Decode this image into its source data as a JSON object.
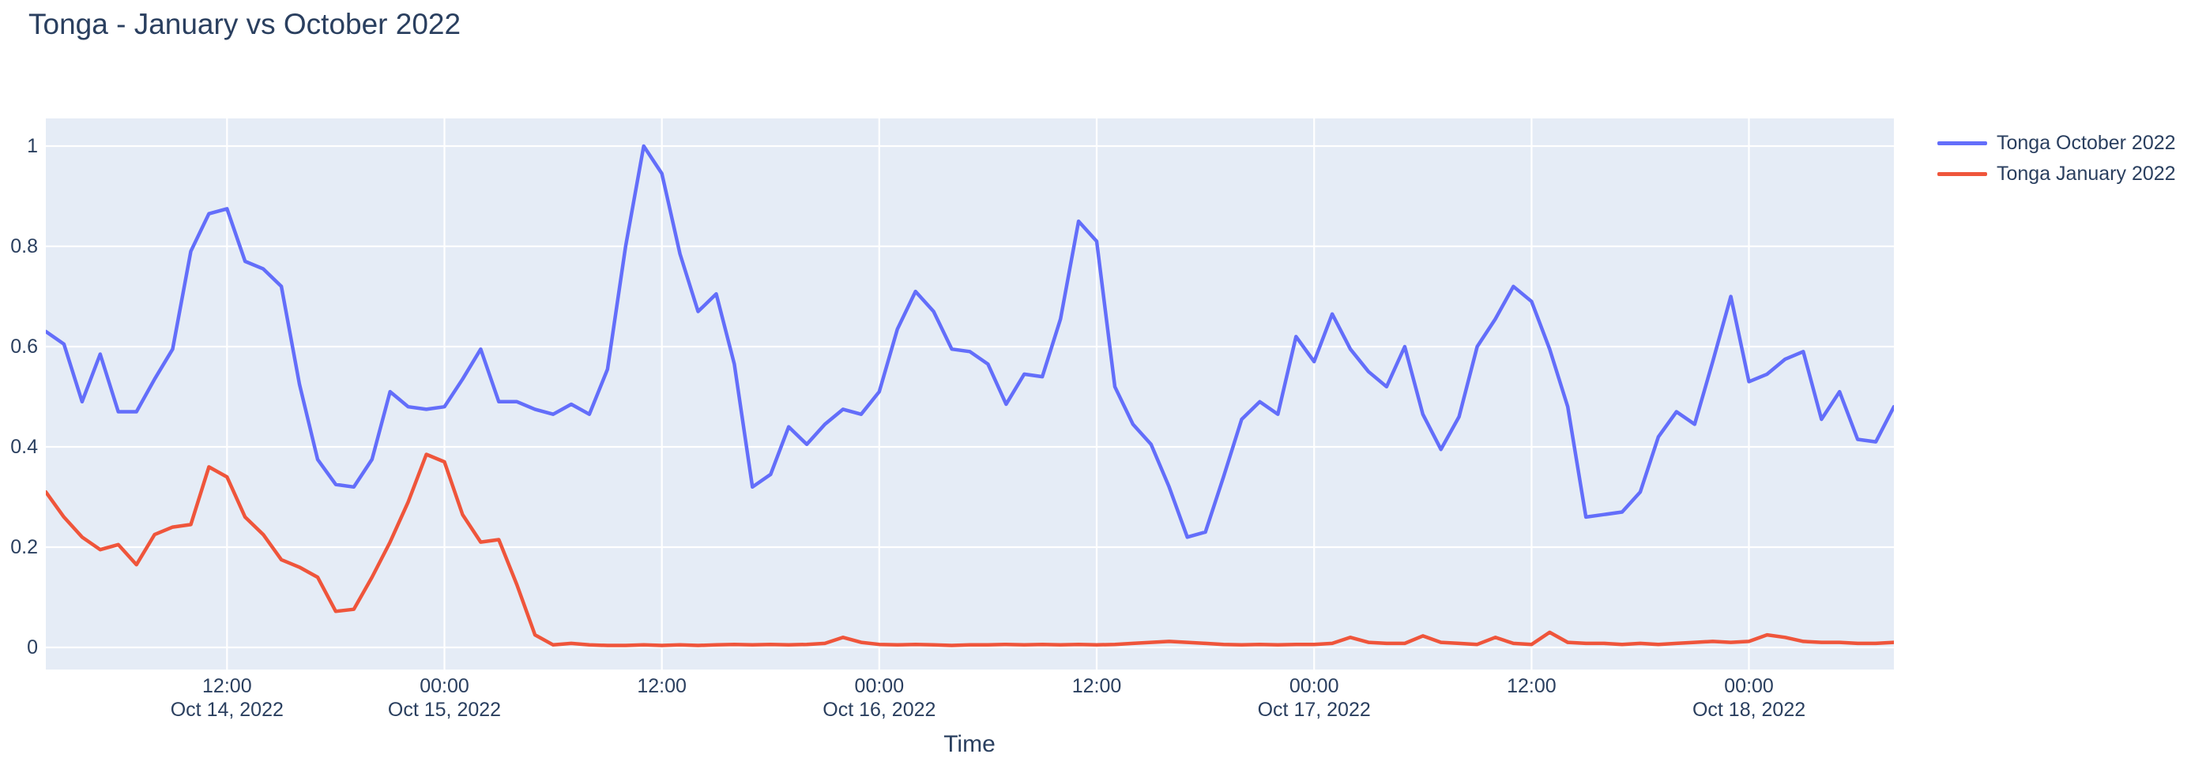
{
  "chart_data": {
    "type": "line",
    "title": "Tonga - January vs October 2022",
    "xlabel": "Time",
    "ylabel": "",
    "plot_bg": "#e5ecf6",
    "grid_color": "#ffffff",
    "text_color": "#2a3f5f",
    "grid": true,
    "legend_position": "right",
    "ylim": [
      -0.0441,
      1.0551
    ],
    "yticks": [
      {
        "value": 0,
        "label": "0"
      },
      {
        "value": 0.2,
        "label": "0.2"
      },
      {
        "value": 0.4,
        "label": "0.4"
      },
      {
        "value": 0.6,
        "label": "0.6"
      },
      {
        "value": 0.8,
        "label": "0.8"
      },
      {
        "value": 1,
        "label": "1"
      }
    ],
    "xticks": [
      {
        "hour_offset": 10,
        "time": "12:00",
        "date": "Oct 14, 2022"
      },
      {
        "hour_offset": 22,
        "time": "00:00",
        "date": "Oct 15, 2022"
      },
      {
        "hour_offset": 34,
        "time": "12:00",
        "date": ""
      },
      {
        "hour_offset": 46,
        "time": "00:00",
        "date": "Oct 16, 2022"
      },
      {
        "hour_offset": 58,
        "time": "12:00",
        "date": ""
      },
      {
        "hour_offset": 70,
        "time": "00:00",
        "date": "Oct 17, 2022"
      },
      {
        "hour_offset": 82,
        "time": "12:00",
        "date": ""
      },
      {
        "hour_offset": 94,
        "time": "00:00",
        "date": "Oct 18, 2022"
      }
    ],
    "x": [
      "2022-10-14 02:00",
      "2022-10-14 03:00",
      "2022-10-14 04:00",
      "2022-10-14 05:00",
      "2022-10-14 06:00",
      "2022-10-14 07:00",
      "2022-10-14 08:00",
      "2022-10-14 09:00",
      "2022-10-14 10:00",
      "2022-10-14 11:00",
      "2022-10-14 12:00",
      "2022-10-14 13:00",
      "2022-10-14 14:00",
      "2022-10-14 15:00",
      "2022-10-14 16:00",
      "2022-10-14 17:00",
      "2022-10-14 18:00",
      "2022-10-14 19:00",
      "2022-10-14 20:00",
      "2022-10-14 21:00",
      "2022-10-14 22:00",
      "2022-10-14 23:00",
      "2022-10-15 00:00",
      "2022-10-15 01:00",
      "2022-10-15 02:00",
      "2022-10-15 03:00",
      "2022-10-15 04:00",
      "2022-10-15 05:00",
      "2022-10-15 06:00",
      "2022-10-15 07:00",
      "2022-10-15 08:00",
      "2022-10-15 09:00",
      "2022-10-15 10:00",
      "2022-10-15 11:00",
      "2022-10-15 12:00",
      "2022-10-15 13:00",
      "2022-10-15 14:00",
      "2022-10-15 15:00",
      "2022-10-15 16:00",
      "2022-10-15 17:00",
      "2022-10-15 18:00",
      "2022-10-15 19:00",
      "2022-10-15 20:00",
      "2022-10-15 21:00",
      "2022-10-15 22:00",
      "2022-10-15 23:00",
      "2022-10-16 00:00",
      "2022-10-16 01:00",
      "2022-10-16 02:00",
      "2022-10-16 03:00",
      "2022-10-16 04:00",
      "2022-10-16 05:00",
      "2022-10-16 06:00",
      "2022-10-16 07:00",
      "2022-10-16 08:00",
      "2022-10-16 09:00",
      "2022-10-16 10:00",
      "2022-10-16 11:00",
      "2022-10-16 12:00",
      "2022-10-16 13:00",
      "2022-10-16 14:00",
      "2022-10-16 15:00",
      "2022-10-16 16:00",
      "2022-10-16 17:00",
      "2022-10-16 18:00",
      "2022-10-16 19:00",
      "2022-10-16 20:00",
      "2022-10-16 21:00",
      "2022-10-16 22:00",
      "2022-10-16 23:00",
      "2022-10-17 00:00",
      "2022-10-17 01:00",
      "2022-10-17 02:00",
      "2022-10-17 03:00",
      "2022-10-17 04:00",
      "2022-10-17 05:00",
      "2022-10-17 06:00",
      "2022-10-17 07:00",
      "2022-10-17 08:00",
      "2022-10-17 09:00",
      "2022-10-17 10:00",
      "2022-10-17 11:00",
      "2022-10-17 12:00",
      "2022-10-17 13:00",
      "2022-10-17 14:00",
      "2022-10-17 15:00",
      "2022-10-17 16:00",
      "2022-10-17 17:00",
      "2022-10-17 18:00",
      "2022-10-17 19:00",
      "2022-10-17 20:00",
      "2022-10-17 21:00",
      "2022-10-17 22:00",
      "2022-10-17 23:00",
      "2022-10-18 00:00",
      "2022-10-18 01:00",
      "2022-10-18 02:00",
      "2022-10-18 03:00",
      "2022-10-18 04:00",
      "2022-10-18 05:00",
      "2022-10-18 06:00",
      "2022-10-18 07:00",
      "2022-10-18 08:00"
    ],
    "series": [
      {
        "name": "Tonga October 2022",
        "color": "#636efa",
        "values": [
          0.63,
          0.605,
          0.49,
          0.585,
          0.47,
          0.47,
          0.535,
          0.595,
          0.79,
          0.865,
          0.875,
          0.77,
          0.755,
          0.72,
          0.525,
          0.375,
          0.325,
          0.32,
          0.375,
          0.51,
          0.48,
          0.475,
          0.48,
          0.535,
          0.595,
          0.49,
          0.49,
          0.475,
          0.465,
          0.485,
          0.465,
          0.555,
          0.8,
          1.0,
          0.945,
          0.785,
          0.67,
          0.705,
          0.565,
          0.32,
          0.345,
          0.44,
          0.405,
          0.445,
          0.475,
          0.465,
          0.51,
          0.635,
          0.71,
          0.67,
          0.595,
          0.59,
          0.565,
          0.485,
          0.545,
          0.54,
          0.655,
          0.85,
          0.81,
          0.52,
          0.445,
          0.405,
          0.32,
          0.22,
          0.23,
          0.34,
          0.455,
          0.49,
          0.465,
          0.62,
          0.57,
          0.665,
          0.595,
          0.55,
          0.52,
          0.6,
          0.465,
          0.395,
          0.46,
          0.6,
          0.655,
          0.72,
          0.69,
          0.595,
          0.48,
          0.26,
          0.265,
          0.27,
          0.31,
          0.42,
          0.47,
          0.445,
          0.57,
          0.7,
          0.53,
          0.545,
          0.575,
          0.59,
          0.455,
          0.51,
          0.415,
          0.41,
          0.48
        ]
      },
      {
        "name": "Tonga January 2022",
        "color": "#ef553b",
        "values": [
          0.31,
          0.26,
          0.22,
          0.195,
          0.205,
          0.165,
          0.225,
          0.24,
          0.245,
          0.36,
          0.34,
          0.26,
          0.225,
          0.175,
          0.16,
          0.14,
          0.072,
          0.076,
          0.14,
          0.21,
          0.29,
          0.385,
          0.37,
          0.265,
          0.21,
          0.215,
          0.125,
          0.025,
          0.005,
          0.008,
          0.005,
          0.004,
          0.004,
          0.005,
          0.004,
          0.005,
          0.004,
          0.005,
          0.006,
          0.005,
          0.006,
          0.005,
          0.006,
          0.008,
          0.02,
          0.01,
          0.006,
          0.005,
          0.006,
          0.005,
          0.004,
          0.005,
          0.005,
          0.006,
          0.005,
          0.006,
          0.005,
          0.006,
          0.005,
          0.006,
          0.008,
          0.01,
          0.012,
          0.01,
          0.008,
          0.006,
          0.005,
          0.006,
          0.005,
          0.006,
          0.006,
          0.008,
          0.02,
          0.01,
          0.008,
          0.008,
          0.023,
          0.01,
          0.008,
          0.006,
          0.02,
          0.008,
          0.006,
          0.03,
          0.01,
          0.008,
          0.008,
          0.006,
          0.008,
          0.006,
          0.008,
          0.01,
          0.012,
          0.01,
          0.012,
          0.025,
          0.02,
          0.012,
          0.01,
          0.01,
          0.008,
          0.008,
          0.01
        ]
      }
    ]
  }
}
